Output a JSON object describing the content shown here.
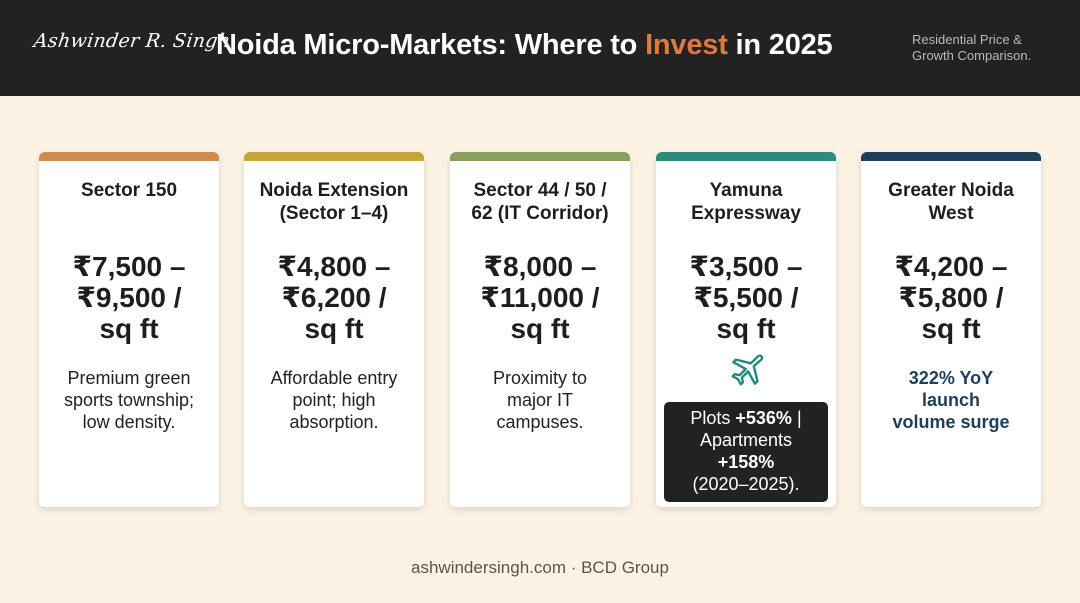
{
  "header": {
    "signature": "Ashwinder R. Singh",
    "title_before": "Noida Micro-Markets: Where to ",
    "title_accent": "Invest",
    "title_after": " in 2025",
    "subtitle_line1": "Residential Price &",
    "subtitle_line2": "Growth Comparison."
  },
  "colors": {
    "header_bg": "#222222",
    "accent": "#e0793f",
    "page_bg": "#fcf3e4",
    "highlight_text": "#1e3e5c",
    "plane_icon": "#1e8a7a"
  },
  "cards": [
    {
      "name_line1": "Sector 150",
      "name_line2": "",
      "price_line1": "₹7,500 –",
      "price_line2": "₹9,500 /",
      "price_line3": "sq ft",
      "desc_line1": "Premium green",
      "desc_line2": "sports township;",
      "desc_line3": "low density.",
      "bar_color": "#cf8a4f"
    },
    {
      "name_line1": "Noida Extension",
      "name_line2": "(Sector 1–4)",
      "price_line1": "₹4,800 –",
      "price_line2": "₹6,200 /",
      "price_line3": "sq ft",
      "desc_line1": "Affordable entry",
      "desc_line2": "point; high",
      "desc_line3": "absorption.",
      "bar_color": "#c7a53b"
    },
    {
      "name_line1": "Sector 44 / 50 /",
      "name_line2": "62 (IT Corridor)",
      "price_line1": "₹8,000 –",
      "price_line2": "₹11,000 /",
      "price_line3": "sq ft",
      "desc_line1": "Proximity to",
      "desc_line2": "major IT",
      "desc_line3": "campuses.",
      "bar_color": "#8a9f5e"
    },
    {
      "name_line1": "Yamuna",
      "name_line2": "Expressway",
      "price_line1": "₹3,500 –",
      "price_line2": "₹5,500 /",
      "price_line3": "sq ft",
      "icon": "airplane-icon",
      "stat": {
        "plots_label": "Plots ",
        "plots_value": "+536%",
        "separator": " |",
        "apartments_label": "Apartments",
        "apartments_value": "+158%",
        "period": "(2020–2025)."
      },
      "bar_color": "#2e8a7a"
    },
    {
      "name_line1": "Greater Noida",
      "name_line2": "West",
      "price_line1": "₹4,200 –",
      "price_line2": "₹5,800 /",
      "price_line3": "sq ft",
      "desc_line1": "322% YoY",
      "desc_line2": "launch",
      "desc_line3": "volume surge",
      "bar_color": "#1e3e5c"
    }
  ],
  "footer": {
    "text": "ashwindersingh.com · BCD Group"
  }
}
